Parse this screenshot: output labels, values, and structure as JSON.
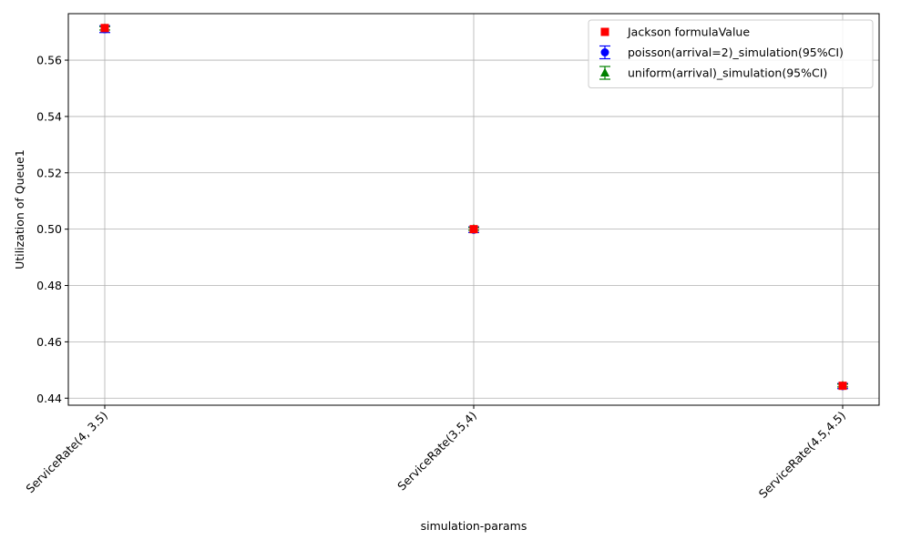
{
  "chart_data": {
    "type": "scatter",
    "title": "",
    "xlabel": "simulation-params",
    "ylabel": "Utilization of Queue1",
    "categories": [
      "ServiceRate(4, 3.5)",
      "ServiceRate(3.5,4)",
      "ServiceRate(4.5,4.5)"
    ],
    "ylim": [
      0.4375,
      0.5765
    ],
    "yticks": [
      0.44,
      0.46,
      0.48,
      0.5,
      0.52,
      0.54,
      0.56
    ],
    "ytick_labels": [
      "0.44",
      "0.46",
      "0.48",
      "0.50",
      "0.52",
      "0.54",
      "0.56"
    ],
    "grid": true,
    "legend_position": "top-right",
    "series": [
      {
        "name": "poisson(arrival=2)_simulation(95%CI)",
        "marker": "circle",
        "color": "#0000ff",
        "errorbar": true,
        "values": [
          0.571,
          0.4998,
          0.4443
        ],
        "ci": [
          0.0012,
          0.001,
          0.0009
        ]
      },
      {
        "name": "uniform(arrival)_simulation(95%CI)",
        "marker": "triangle",
        "color": "#008000",
        "errorbar": true,
        "values": [
          0.5713,
          0.5001,
          0.4445
        ],
        "ci": [
          0.0006,
          0.0005,
          0.0005
        ]
      },
      {
        "name": "Jackson formulaValue",
        "marker": "square",
        "color": "#ff0000",
        "errorbar": false,
        "values": [
          0.5714,
          0.5,
          0.4444
        ]
      }
    ],
    "legend_order": [
      2,
      0,
      1
    ]
  }
}
